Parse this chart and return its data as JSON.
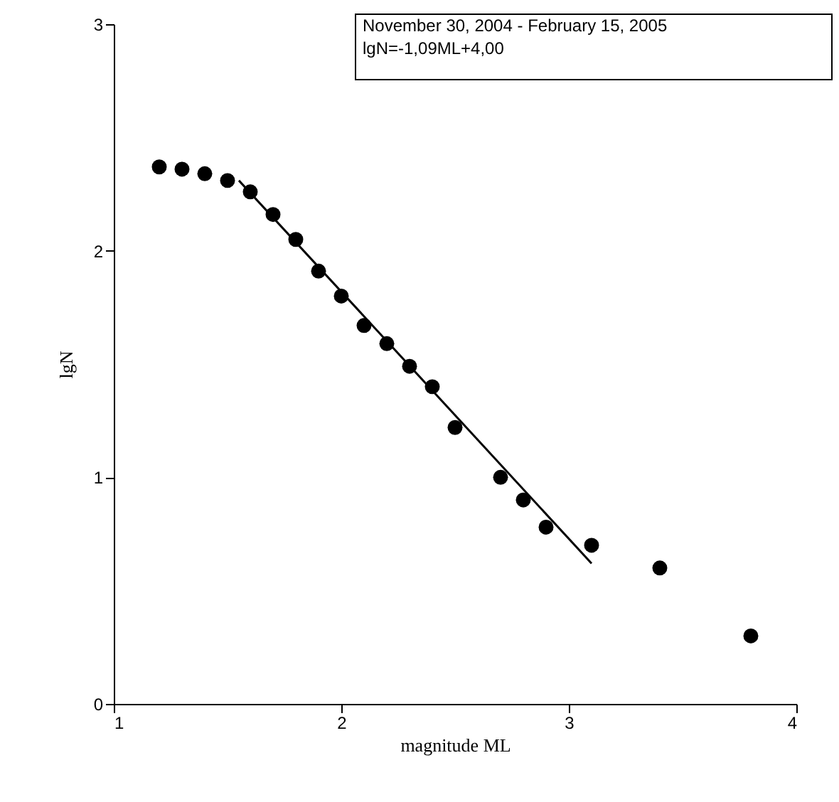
{
  "chart_data": {
    "type": "scatter",
    "xlabel": "magnitude ML",
    "ylabel": "lgN",
    "annotations": [
      "November  30, 2004 - February 15, 2005",
      "lgN=-1,09ML+4,00"
    ],
    "xlim": [
      1,
      4
    ],
    "xticks": [
      1,
      2,
      3,
      4
    ],
    "ylim": [
      0,
      3
    ],
    "yticks": [
      0,
      1,
      2,
      3
    ],
    "grid": false,
    "series": [
      {
        "color": "#000000",
        "marker": "circle",
        "x": [
          1.2,
          1.3,
          1.4,
          1.5,
          1.6,
          1.7,
          1.8,
          1.9,
          2.0,
          2.1,
          2.2,
          2.3,
          2.4,
          2.5,
          2.7,
          2.8,
          2.9,
          3.1,
          3.4,
          3.8
        ],
        "values": [
          2.37,
          2.36,
          2.34,
          2.31,
          2.26,
          2.16,
          2.05,
          1.91,
          1.8,
          1.67,
          1.59,
          1.49,
          1.4,
          1.22,
          1.0,
          0.9,
          0.78,
          0.7,
          0.6,
          0.3
        ]
      },
      {
        "type": "line",
        "color": "#000000",
        "line_style": "solid",
        "marker": "none",
        "x": [
          1.55,
          3.1
        ],
        "values": [
          2.31,
          0.62
        ]
      }
    ]
  }
}
